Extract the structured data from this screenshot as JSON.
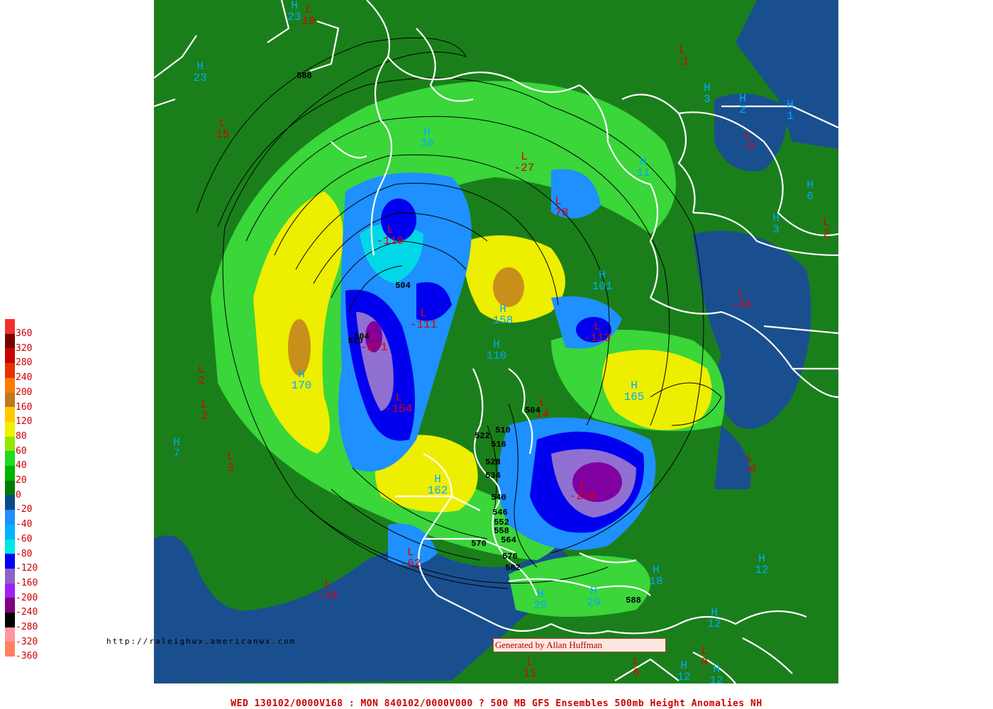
{
  "footer_title": "WED 130102/0000V168 : MON 840102/0000V000  ? 500 MB GFS Ensembles 500mb Height Anomalies NH",
  "url_text": "http://raleighwx.americanwx.com",
  "credit_text": "Generated by Allan Huffman",
  "legend": [
    {
      "label": "360",
      "color": "#f03030"
    },
    {
      "label": "320",
      "color": "#7a0000"
    },
    {
      "label": "280",
      "color": "#c80000"
    },
    {
      "label": "240",
      "color": "#e63200"
    },
    {
      "label": "200",
      "color": "#ff7a00"
    },
    {
      "label": "160",
      "color": "#c07818"
    },
    {
      "label": "120",
      "color": "#ffc800"
    },
    {
      "label": "80",
      "color": "#f0f000"
    },
    {
      "label": "60",
      "color": "#96e600"
    },
    {
      "label": "40",
      "color": "#1edc1e"
    },
    {
      "label": "20",
      "color": "#00b400"
    },
    {
      "label": "0",
      "color": "#007d00"
    },
    {
      "label": "-20",
      "color": "#0a4a8a"
    },
    {
      "label": "-40",
      "color": "#1e90ff"
    },
    {
      "label": "-60",
      "color": "#00b4ff"
    },
    {
      "label": "-80",
      "color": "#00e6e6"
    },
    {
      "label": "-120",
      "color": "#0000f0"
    },
    {
      "label": "-160",
      "color": "#8c64c8"
    },
    {
      "label": "-200",
      "color": "#a020f0"
    },
    {
      "label": "-240",
      "color": "#800080"
    },
    {
      "label": "-280",
      "color": "#000000"
    },
    {
      "label": "-320",
      "color": "#ff96a0"
    },
    {
      "label": "-360",
      "color": "#ff8060"
    }
  ],
  "centers": [
    {
      "type": "H",
      "value": "23"
    },
    {
      "type": "L",
      "value": "19"
    },
    {
      "type": "H",
      "value": "23"
    },
    {
      "type": "L",
      "value": "15"
    },
    {
      "type": "L",
      "value": "-1"
    },
    {
      "type": "H",
      "value": "3"
    },
    {
      "type": "H",
      "value": "2"
    },
    {
      "type": "H",
      "value": "1"
    },
    {
      "type": "L",
      "value": "-9"
    },
    {
      "type": "H",
      "value": "36"
    },
    {
      "type": "L",
      "value": "-27"
    },
    {
      "type": "H",
      "value": "11"
    },
    {
      "type": "H",
      "value": "6"
    },
    {
      "type": "L",
      "value": "-78"
    },
    {
      "type": "H",
      "value": "3"
    },
    {
      "type": "L",
      "value": "2"
    },
    {
      "type": "L",
      "value": "-119"
    },
    {
      "type": "H",
      "value": "101"
    },
    {
      "type": "L",
      "value": "-43"
    },
    {
      "type": "L",
      "value": "-111"
    },
    {
      "type": "H",
      "value": "158"
    },
    {
      "type": "L",
      "value": "-113"
    },
    {
      "type": "L",
      "value": "-171"
    },
    {
      "type": "H",
      "value": "110"
    },
    {
      "type": "L",
      "value": "2"
    },
    {
      "type": "H",
      "value": "170"
    },
    {
      "type": "H",
      "value": "165"
    },
    {
      "type": "L",
      "value": "2"
    },
    {
      "type": "L",
      "value": "-154"
    },
    {
      "type": "L",
      "value": "14"
    },
    {
      "type": "H",
      "value": "7"
    },
    {
      "type": "L",
      "value": "3"
    },
    {
      "type": "L",
      "value": "-6"
    },
    {
      "type": "H",
      "value": "162"
    },
    {
      "type": "L",
      "value": "-220"
    },
    {
      "type": "L",
      "value": "-62"
    },
    {
      "type": "H",
      "value": "12"
    },
    {
      "type": "L",
      "value": "-14"
    },
    {
      "type": "H",
      "value": "18"
    },
    {
      "type": "H",
      "value": "29"
    },
    {
      "type": "H",
      "value": "29"
    },
    {
      "type": "H",
      "value": "12"
    },
    {
      "type": "L",
      "value": "11"
    },
    {
      "type": "L",
      "value": "6"
    },
    {
      "type": "L",
      "value": "9"
    },
    {
      "type": "H",
      "value": "12"
    },
    {
      "type": "H",
      "value": "12"
    }
  ],
  "contour_labels": [
    "588",
    "504",
    "504",
    "510",
    "504",
    "522",
    "510",
    "516",
    "528",
    "534",
    "540",
    "546",
    "552",
    "558",
    "564",
    "570",
    "576",
    "582",
    "588"
  ]
}
